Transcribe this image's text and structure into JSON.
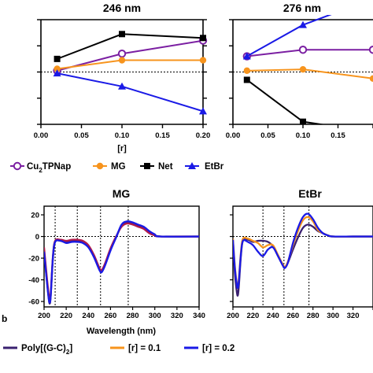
{
  "colors": {
    "purple": "#7B1FA2",
    "orange": "#F7941D",
    "black": "#000000",
    "blue": "#1A1AE6",
    "crimson": "#B01A4A",
    "navy": "#3A2070"
  },
  "chart_data": [
    {
      "id": "p246",
      "type": "line",
      "title": "246 nm",
      "xlabel": "[r]",
      "x": [
        0.02,
        0.1,
        0.2
      ],
      "xlim": [
        0,
        0.2
      ],
      "xticks": [
        "0.00",
        "0.05",
        "0.10",
        "0.15",
        "0.20"
      ],
      "ylim": [
        -2,
        2
      ],
      "series": [
        {
          "name": "Cu2TPNap",
          "color": "purple",
          "marker": "open-circle",
          "values": [
            0.05,
            0.7,
            1.2
          ]
        },
        {
          "name": "MG",
          "color": "orange",
          "marker": "circle",
          "values": [
            0.12,
            0.45,
            0.45
          ]
        },
        {
          "name": "Net",
          "color": "black",
          "marker": "square",
          "values": [
            0.5,
            1.45,
            1.3
          ]
        },
        {
          "name": "EtBr",
          "color": "blue",
          "marker": "triangle",
          "values": [
            -0.05,
            -0.55,
            -1.5
          ]
        }
      ]
    },
    {
      "id": "p276",
      "type": "line",
      "title": "276 nm",
      "x": [
        0.02,
        0.1,
        0.2
      ],
      "xlim": [
        0,
        0.2
      ],
      "xticks": [
        "0.00",
        "0.05",
        "0.10",
        "0.15"
      ],
      "xtick_partial": "0",
      "ylim": [
        -2,
        2
      ],
      "series": [
        {
          "name": "Cu2TPNap",
          "color": "purple",
          "marker": "open-circle",
          "values": [
            0.6,
            0.85,
            0.85
          ]
        },
        {
          "name": "MG",
          "color": "orange",
          "marker": "circle",
          "values": [
            0.05,
            0.1,
            -0.25
          ]
        },
        {
          "name": "Net",
          "color": "black",
          "marker": "square",
          "values": [
            -0.3,
            -1.9,
            -2.3
          ]
        },
        {
          "name": "EtBr",
          "color": "blue",
          "marker": "triangle",
          "values": [
            0.6,
            1.8,
            2.8
          ]
        }
      ]
    },
    {
      "id": "pMG",
      "type": "line",
      "title": "MG",
      "xlabel": "Wavelength (nm)",
      "xlim": [
        200,
        340
      ],
      "xticks": [
        "200",
        "220",
        "240",
        "260",
        "280",
        "300",
        "320",
        "340"
      ],
      "ylim": [
        -65,
        28
      ],
      "yticks": [
        "20",
        "0",
        "-20",
        "-40",
        "-60"
      ],
      "vlines": [
        210,
        230,
        251,
        276
      ],
      "series": [
        {
          "name": "Poly[(G-C)2]",
          "color": "navy",
          "points": [
            [
              200,
              -12
            ],
            [
              202,
              -35
            ],
            [
              204,
              -55
            ],
            [
              205,
              -62
            ],
            [
              206,
              -55
            ],
            [
              208,
              -20
            ],
            [
              210,
              -5
            ],
            [
              215,
              -4
            ],
            [
              220,
              -5
            ],
            [
              225,
              -4
            ],
            [
              230,
              -4
            ],
            [
              235,
              -5
            ],
            [
              240,
              -9
            ],
            [
              245,
              -18
            ],
            [
              250,
              -30
            ],
            [
              252,
              -32
            ],
            [
              255,
              -26
            ],
            [
              260,
              -12
            ],
            [
              265,
              -1
            ],
            [
              270,
              10
            ],
            [
              275,
              13
            ],
            [
              280,
              12
            ],
            [
              285,
              10
            ],
            [
              290,
              8
            ],
            [
              295,
              4
            ],
            [
              300,
              1
            ],
            [
              305,
              0
            ],
            [
              310,
              0
            ],
            [
              320,
              0
            ],
            [
              330,
              0
            ],
            [
              340,
              0
            ]
          ]
        },
        {
          "name": "[r] = 0.1",
          "color": "crimson",
          "points": [
            [
              200,
              -10
            ],
            [
              202,
              -32
            ],
            [
              204,
              -52
            ],
            [
              205,
              -58
            ],
            [
              206,
              -52
            ],
            [
              208,
              -18
            ],
            [
              210,
              -4
            ],
            [
              215,
              -3
            ],
            [
              220,
              -4
            ],
            [
              225,
              -3
            ],
            [
              230,
              -3
            ],
            [
              235,
              -4
            ],
            [
              240,
              -8
            ],
            [
              245,
              -17
            ],
            [
              250,
              -29
            ],
            [
              252,
              -31
            ],
            [
              255,
              -25
            ],
            [
              260,
              -11
            ],
            [
              265,
              0
            ],
            [
              270,
              9
            ],
            [
              275,
              12
            ],
            [
              280,
              11
            ],
            [
              285,
              9
            ],
            [
              290,
              7
            ],
            [
              295,
              3
            ],
            [
              300,
              1
            ],
            [
              305,
              0
            ],
            [
              340,
              0
            ]
          ]
        },
        {
          "name": "[r] = 0.2",
          "color": "blue",
          "points": [
            [
              200,
              -14
            ],
            [
              202,
              -36
            ],
            [
              204,
              -56
            ],
            [
              205,
              -61
            ],
            [
              206,
              -55
            ],
            [
              208,
              -19
            ],
            [
              210,
              -5
            ],
            [
              215,
              -4
            ],
            [
              220,
              -6
            ],
            [
              225,
              -5
            ],
            [
              230,
              -5
            ],
            [
              235,
              -6
            ],
            [
              240,
              -10
            ],
            [
              245,
              -19
            ],
            [
              250,
              -31
            ],
            [
              252,
              -33
            ],
            [
              255,
              -27
            ],
            [
              260,
              -13
            ],
            [
              265,
              -1
            ],
            [
              270,
              11
            ],
            [
              275,
              14
            ],
            [
              280,
              13
            ],
            [
              285,
              11
            ],
            [
              290,
              9
            ],
            [
              295,
              5
            ],
            [
              300,
              2
            ],
            [
              305,
              0
            ],
            [
              340,
              0
            ]
          ]
        }
      ]
    },
    {
      "id": "pEt",
      "type": "line",
      "title": "EtBr",
      "xlim": [
        200,
        340
      ],
      "xticks": [
        "200",
        "220",
        "240",
        "260",
        "280",
        "300",
        "320"
      ],
      "ylim": [
        -65,
        28
      ],
      "yticks": [],
      "vlines": [
        230,
        251,
        276
      ],
      "series": [
        {
          "name": "Poly[(G-C)2]",
          "color": "navy",
          "points": [
            [
              200,
              -5
            ],
            [
              202,
              -35
            ],
            [
              204,
              -52
            ],
            [
              205,
              -54
            ],
            [
              206,
              -45
            ],
            [
              208,
              -18
            ],
            [
              210,
              -4
            ],
            [
              215,
              -3
            ],
            [
              220,
              -5
            ],
            [
              225,
              -4
            ],
            [
              230,
              -4
            ],
            [
              235,
              -5
            ],
            [
              240,
              -9
            ],
            [
              245,
              -18
            ],
            [
              250,
              -27
            ],
            [
              252,
              -29
            ],
            [
              255,
              -24
            ],
            [
              260,
              -12
            ],
            [
              265,
              -1
            ],
            [
              270,
              8
            ],
            [
              275,
              11
            ],
            [
              280,
              9
            ],
            [
              285,
              5
            ],
            [
              290,
              3
            ],
            [
              295,
              1
            ],
            [
              300,
              0
            ],
            [
              320,
              0
            ],
            [
              340,
              0
            ]
          ]
        },
        {
          "name": "[r] = 0.1",
          "color": "orange",
          "points": [
            [
              200,
              -2
            ],
            [
              202,
              -28
            ],
            [
              204,
              -44
            ],
            [
              205,
              -46
            ],
            [
              206,
              -38
            ],
            [
              208,
              -14
            ],
            [
              210,
              -2
            ],
            [
              215,
              -2
            ],
            [
              220,
              -4
            ],
            [
              225,
              -6
            ],
            [
              230,
              -10
            ],
            [
              235,
              -8
            ],
            [
              240,
              -8
            ],
            [
              245,
              -17
            ],
            [
              250,
              -26
            ],
            [
              252,
              -28
            ],
            [
              255,
              -23
            ],
            [
              260,
              -8
            ],
            [
              265,
              5
            ],
            [
              270,
              15
            ],
            [
              275,
              18
            ],
            [
              280,
              14
            ],
            [
              285,
              6
            ],
            [
              290,
              3
            ],
            [
              295,
              1
            ],
            [
              300,
              0
            ],
            [
              320,
              0
            ],
            [
              340,
              0
            ]
          ]
        },
        {
          "name": "[r] = 0.2",
          "color": "blue",
          "points": [
            [
              200,
              -3
            ],
            [
              202,
              -30
            ],
            [
              204,
              -45
            ],
            [
              205,
              -47
            ],
            [
              206,
              -40
            ],
            [
              208,
              -16
            ],
            [
              210,
              -4
            ],
            [
              215,
              -5
            ],
            [
              220,
              -8
            ],
            [
              225,
              -14
            ],
            [
              230,
              -18
            ],
            [
              235,
              -12
            ],
            [
              240,
              -10
            ],
            [
              245,
              -18
            ],
            [
              250,
              -27
            ],
            [
              252,
              -29
            ],
            [
              255,
              -24
            ],
            [
              260,
              -6
            ],
            [
              265,
              8
            ],
            [
              270,
              18
            ],
            [
              275,
              21
            ],
            [
              280,
              16
            ],
            [
              285,
              8
            ],
            [
              290,
              3
            ],
            [
              295,
              1
            ],
            [
              300,
              0
            ],
            [
              320,
              0
            ],
            [
              340,
              0
            ]
          ]
        }
      ]
    }
  ],
  "legend_top": [
    {
      "label": "Cu",
      "sub": "2",
      "rest": "TPNap",
      "color": "purple",
      "marker": "open-circle"
    },
    {
      "label": "MG",
      "sub": "",
      "rest": "",
      "color": "orange",
      "marker": "circle"
    },
    {
      "label": "Net",
      "sub": "",
      "rest": "",
      "color": "black",
      "marker": "square"
    },
    {
      "label": "EtBr",
      "sub": "",
      "rest": "",
      "color": "blue",
      "marker": "triangle"
    }
  ],
  "legend_bottom": [
    {
      "label": "Poly[(G-C)",
      "sub": "2",
      "rest": "]",
      "color": "navy"
    },
    {
      "label": "[r] = 0.1",
      "sub": "",
      "rest": "",
      "color": "orange"
    },
    {
      "label": "[r] = 0.2",
      "sub": "",
      "rest": "",
      "color": "blue"
    }
  ],
  "panel_fragment": "b"
}
